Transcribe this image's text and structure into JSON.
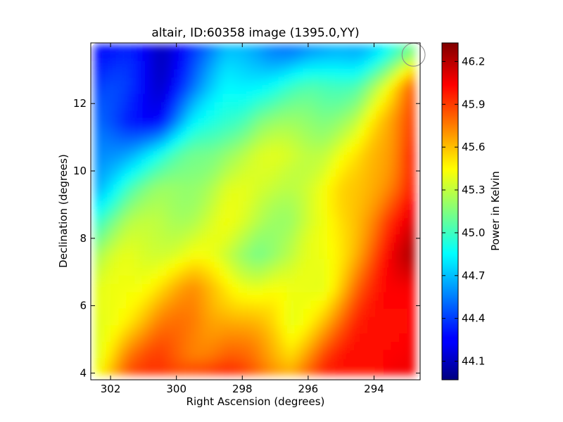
{
  "chart_data": {
    "type": "heatmap",
    "title": "altair, ID:60358 image (1395.0,YY)",
    "xlabel": "Right Ascension (degrees)",
    "ylabel": "Declination (degrees)",
    "xlim": [
      302.6,
      292.6
    ],
    "ylim": [
      3.8,
      13.8
    ],
    "xticks": [
      302,
      300,
      298,
      296,
      294
    ],
    "yticks": [
      4,
      6,
      8,
      10,
      12
    ],
    "colorbar": {
      "label": "Power in Kelvin",
      "range": [
        43.97,
        46.33
      ],
      "ticks": [
        "44.1",
        "44.4",
        "44.7",
        "45.0",
        "45.3",
        "45.6",
        "45.9",
        "46.2"
      ],
      "colormap": "jet"
    },
    "grid": false,
    "marker": {
      "shape": "circle",
      "ra": 292.8,
      "dec": 13.45,
      "radius_deg": 0.35
    },
    "grid_ra": [
      302.5,
      301.5,
      300.5,
      299.5,
      298.5,
      297.5,
      296.5,
      295.5,
      294.5,
      293.5,
      292.8
    ],
    "grid_dec": [
      13.5,
      12.5,
      11.5,
      10.5,
      9.5,
      8.5,
      7.5,
      6.5,
      5.5,
      4.5,
      4.0
    ],
    "values": [
      [
        44.35,
        44.3,
        44.1,
        44.45,
        44.65,
        44.65,
        44.6,
        44.6,
        44.7,
        44.95,
        45.1
      ],
      [
        44.4,
        44.35,
        44.2,
        44.5,
        44.8,
        44.9,
        44.95,
        45.0,
        45.1,
        45.4,
        45.8
      ],
      [
        44.45,
        44.35,
        44.3,
        44.75,
        45.0,
        45.15,
        45.15,
        45.2,
        45.3,
        45.6,
        45.95
      ],
      [
        44.55,
        44.7,
        44.85,
        45.1,
        45.25,
        45.3,
        45.35,
        45.35,
        45.45,
        45.7,
        46.05
      ],
      [
        44.7,
        45.0,
        45.15,
        45.25,
        45.35,
        45.3,
        45.35,
        45.4,
        45.55,
        45.8,
        46.0
      ],
      [
        45.0,
        45.2,
        45.3,
        45.3,
        45.35,
        45.3,
        45.25,
        45.35,
        45.65,
        45.95,
        46.05
      ],
      [
        45.2,
        45.35,
        45.4,
        45.4,
        45.3,
        45.2,
        45.25,
        45.4,
        45.7,
        46.0,
        46.2
      ],
      [
        45.3,
        45.45,
        45.55,
        45.65,
        45.55,
        45.4,
        45.35,
        45.45,
        45.8,
        46.0,
        46.1
      ],
      [
        45.35,
        45.55,
        45.7,
        45.75,
        45.7,
        45.55,
        45.4,
        45.65,
        45.9,
        46.05,
        46.1
      ],
      [
        45.4,
        45.75,
        45.85,
        45.8,
        45.8,
        45.7,
        45.6,
        45.85,
        46.0,
        46.1,
        46.05
      ],
      [
        45.45,
        45.8,
        45.9,
        45.95,
        45.9,
        45.8,
        45.7,
        45.9,
        46.0,
        46.1,
        46.0
      ]
    ]
  }
}
